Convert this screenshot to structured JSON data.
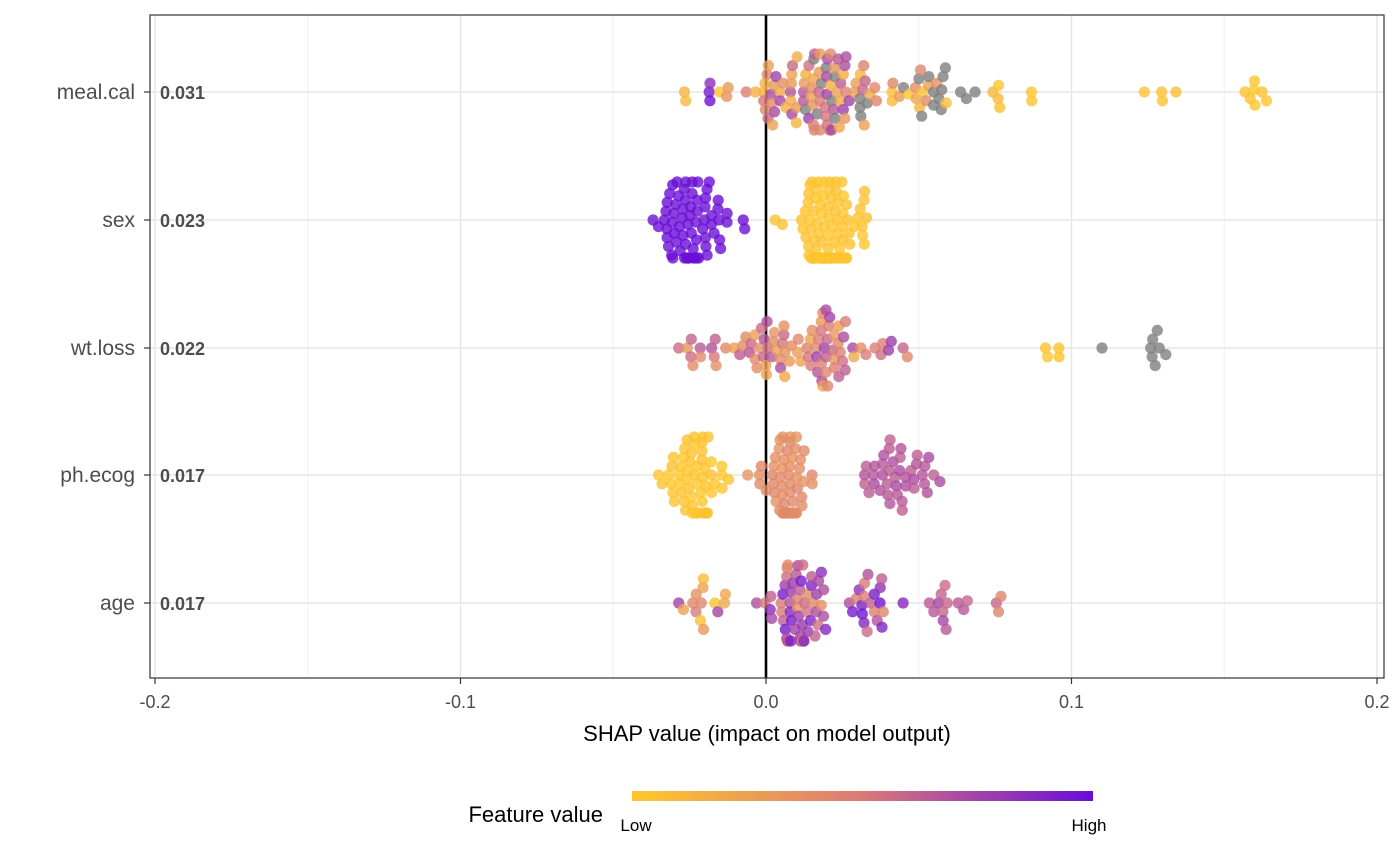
{
  "chart_data": {
    "type": "scatter",
    "subtype": "shap-beeswarm",
    "xlabel": "SHAP value (impact on model output)",
    "xlim": [
      -0.2,
      0.2
    ],
    "x_ticks": [
      -0.2,
      -0.1,
      0.0,
      0.1,
      0.2
    ],
    "x_tick_labels": [
      "-0.2",
      "-0.1",
      "0.0",
      "0.1",
      "0.2"
    ],
    "vertical_line_at": 0.0,
    "grid": true,
    "legend": {
      "title": "Feature value",
      "low_label": "Low",
      "high_label": "High",
      "placement": "bottom",
      "low_color": "#FFC72C",
      "mid_color": "#D97A79",
      "high_color": "#6A0DD8",
      "missing_color": "#808080"
    },
    "features": [
      {
        "name": "meal.cal",
        "mean_abs_shap": "0.031",
        "clusters": [
          {
            "center": -0.025,
            "spread": 0.004,
            "count": 2,
            "feature_value": [
              0.0,
              0.15
            ]
          },
          {
            "center": -0.02,
            "spread": 0.004,
            "count": 3,
            "feature_value": [
              0.8,
              1.0
            ]
          },
          {
            "center": -0.012,
            "spread": 0.004,
            "count": 4,
            "feature_value": [
              0.0,
              0.5
            ]
          },
          {
            "center": 0.005,
            "spread": 0.008,
            "count": 30,
            "feature_value": [
              0.1,
              0.8
            ]
          },
          {
            "center": 0.022,
            "spread": 0.01,
            "count": 45,
            "feature_value": [
              0.15,
              0.8
            ]
          },
          {
            "center": 0.025,
            "spread": 0.01,
            "count": 12,
            "feature_value": "missing"
          },
          {
            "center": 0.045,
            "spread": 0.012,
            "count": 18,
            "feature_value": [
              0.0,
              0.45
            ]
          },
          {
            "center": 0.055,
            "spread": 0.012,
            "count": 14,
            "feature_value": "missing"
          },
          {
            "center": 0.078,
            "spread": 0.006,
            "count": 4,
            "feature_value": [
              0.0,
              0.1
            ]
          },
          {
            "center": 0.088,
            "spread": 0.002,
            "count": 2,
            "feature_value": [
              0.0,
              0.05
            ]
          },
          {
            "center": 0.13,
            "spread": 0.007,
            "count": 4,
            "feature_value": [
              0.0,
              0.05
            ]
          },
          {
            "center": 0.16,
            "spread": 0.005,
            "count": 7,
            "feature_value": [
              0.0,
              0.05
            ]
          }
        ]
      },
      {
        "name": "sex",
        "mean_abs_shap": "0.023",
        "clusters": [
          {
            "center": -0.024,
            "spread": 0.011,
            "count": 70,
            "feature_value": [
              0.98,
              1.0
            ]
          },
          {
            "center": 0.021,
            "spread": 0.009,
            "count": 110,
            "feature_value": [
              0.0,
              0.04
            ]
          }
        ]
      },
      {
        "name": "wt.loss",
        "mean_abs_shap": "0.022",
        "clusters": [
          {
            "center": -0.02,
            "spread": 0.008,
            "count": 12,
            "feature_value": [
              0.3,
              0.7
            ]
          },
          {
            "center": 0.0,
            "spread": 0.007,
            "count": 28,
            "feature_value": [
              0.2,
              0.7
            ]
          },
          {
            "center": 0.02,
            "spread": 0.01,
            "count": 45,
            "feature_value": [
              0.2,
              0.8
            ]
          },
          {
            "center": 0.04,
            "spread": 0.005,
            "count": 6,
            "feature_value": [
              0.3,
              0.95
            ]
          },
          {
            "center": 0.095,
            "spread": 0.007,
            "count": 4,
            "feature_value": [
              0.0,
              0.05
            ]
          },
          {
            "center": 0.11,
            "spread": 0.0,
            "count": 1,
            "feature_value": "missing"
          },
          {
            "center": 0.126,
            "spread": 0.004,
            "count": 7,
            "feature_value": "missing"
          }
        ]
      },
      {
        "name": "ph.ecog",
        "mean_abs_shap": "0.017",
        "clusters": [
          {
            "center": -0.023,
            "spread": 0.009,
            "count": 55,
            "feature_value": [
              0.0,
              0.04
            ]
          },
          {
            "center": 0.006,
            "spread": 0.006,
            "count": 55,
            "feature_value": [
              0.33,
              0.42
            ]
          },
          {
            "center": 0.042,
            "spread": 0.015,
            "count": 40,
            "feature_value": [
              0.62,
              0.72
            ]
          }
        ]
      },
      {
        "name": "age",
        "mean_abs_shap": "0.017",
        "clusters": [
          {
            "center": -0.02,
            "spread": 0.008,
            "count": 14,
            "feature_value": [
              0.0,
              0.8
            ]
          },
          {
            "center": 0.01,
            "spread": 0.009,
            "count": 60,
            "feature_value": [
              0.35,
              0.95
            ]
          },
          {
            "center": 0.035,
            "spread": 0.008,
            "count": 20,
            "feature_value": [
              0.4,
              1.0
            ]
          },
          {
            "center": 0.06,
            "spread": 0.008,
            "count": 12,
            "feature_value": [
              0.55,
              0.75
            ]
          },
          {
            "center": 0.076,
            "spread": 0.002,
            "count": 3,
            "feature_value": [
              0.4,
              0.6
            ]
          }
        ]
      }
    ]
  }
}
